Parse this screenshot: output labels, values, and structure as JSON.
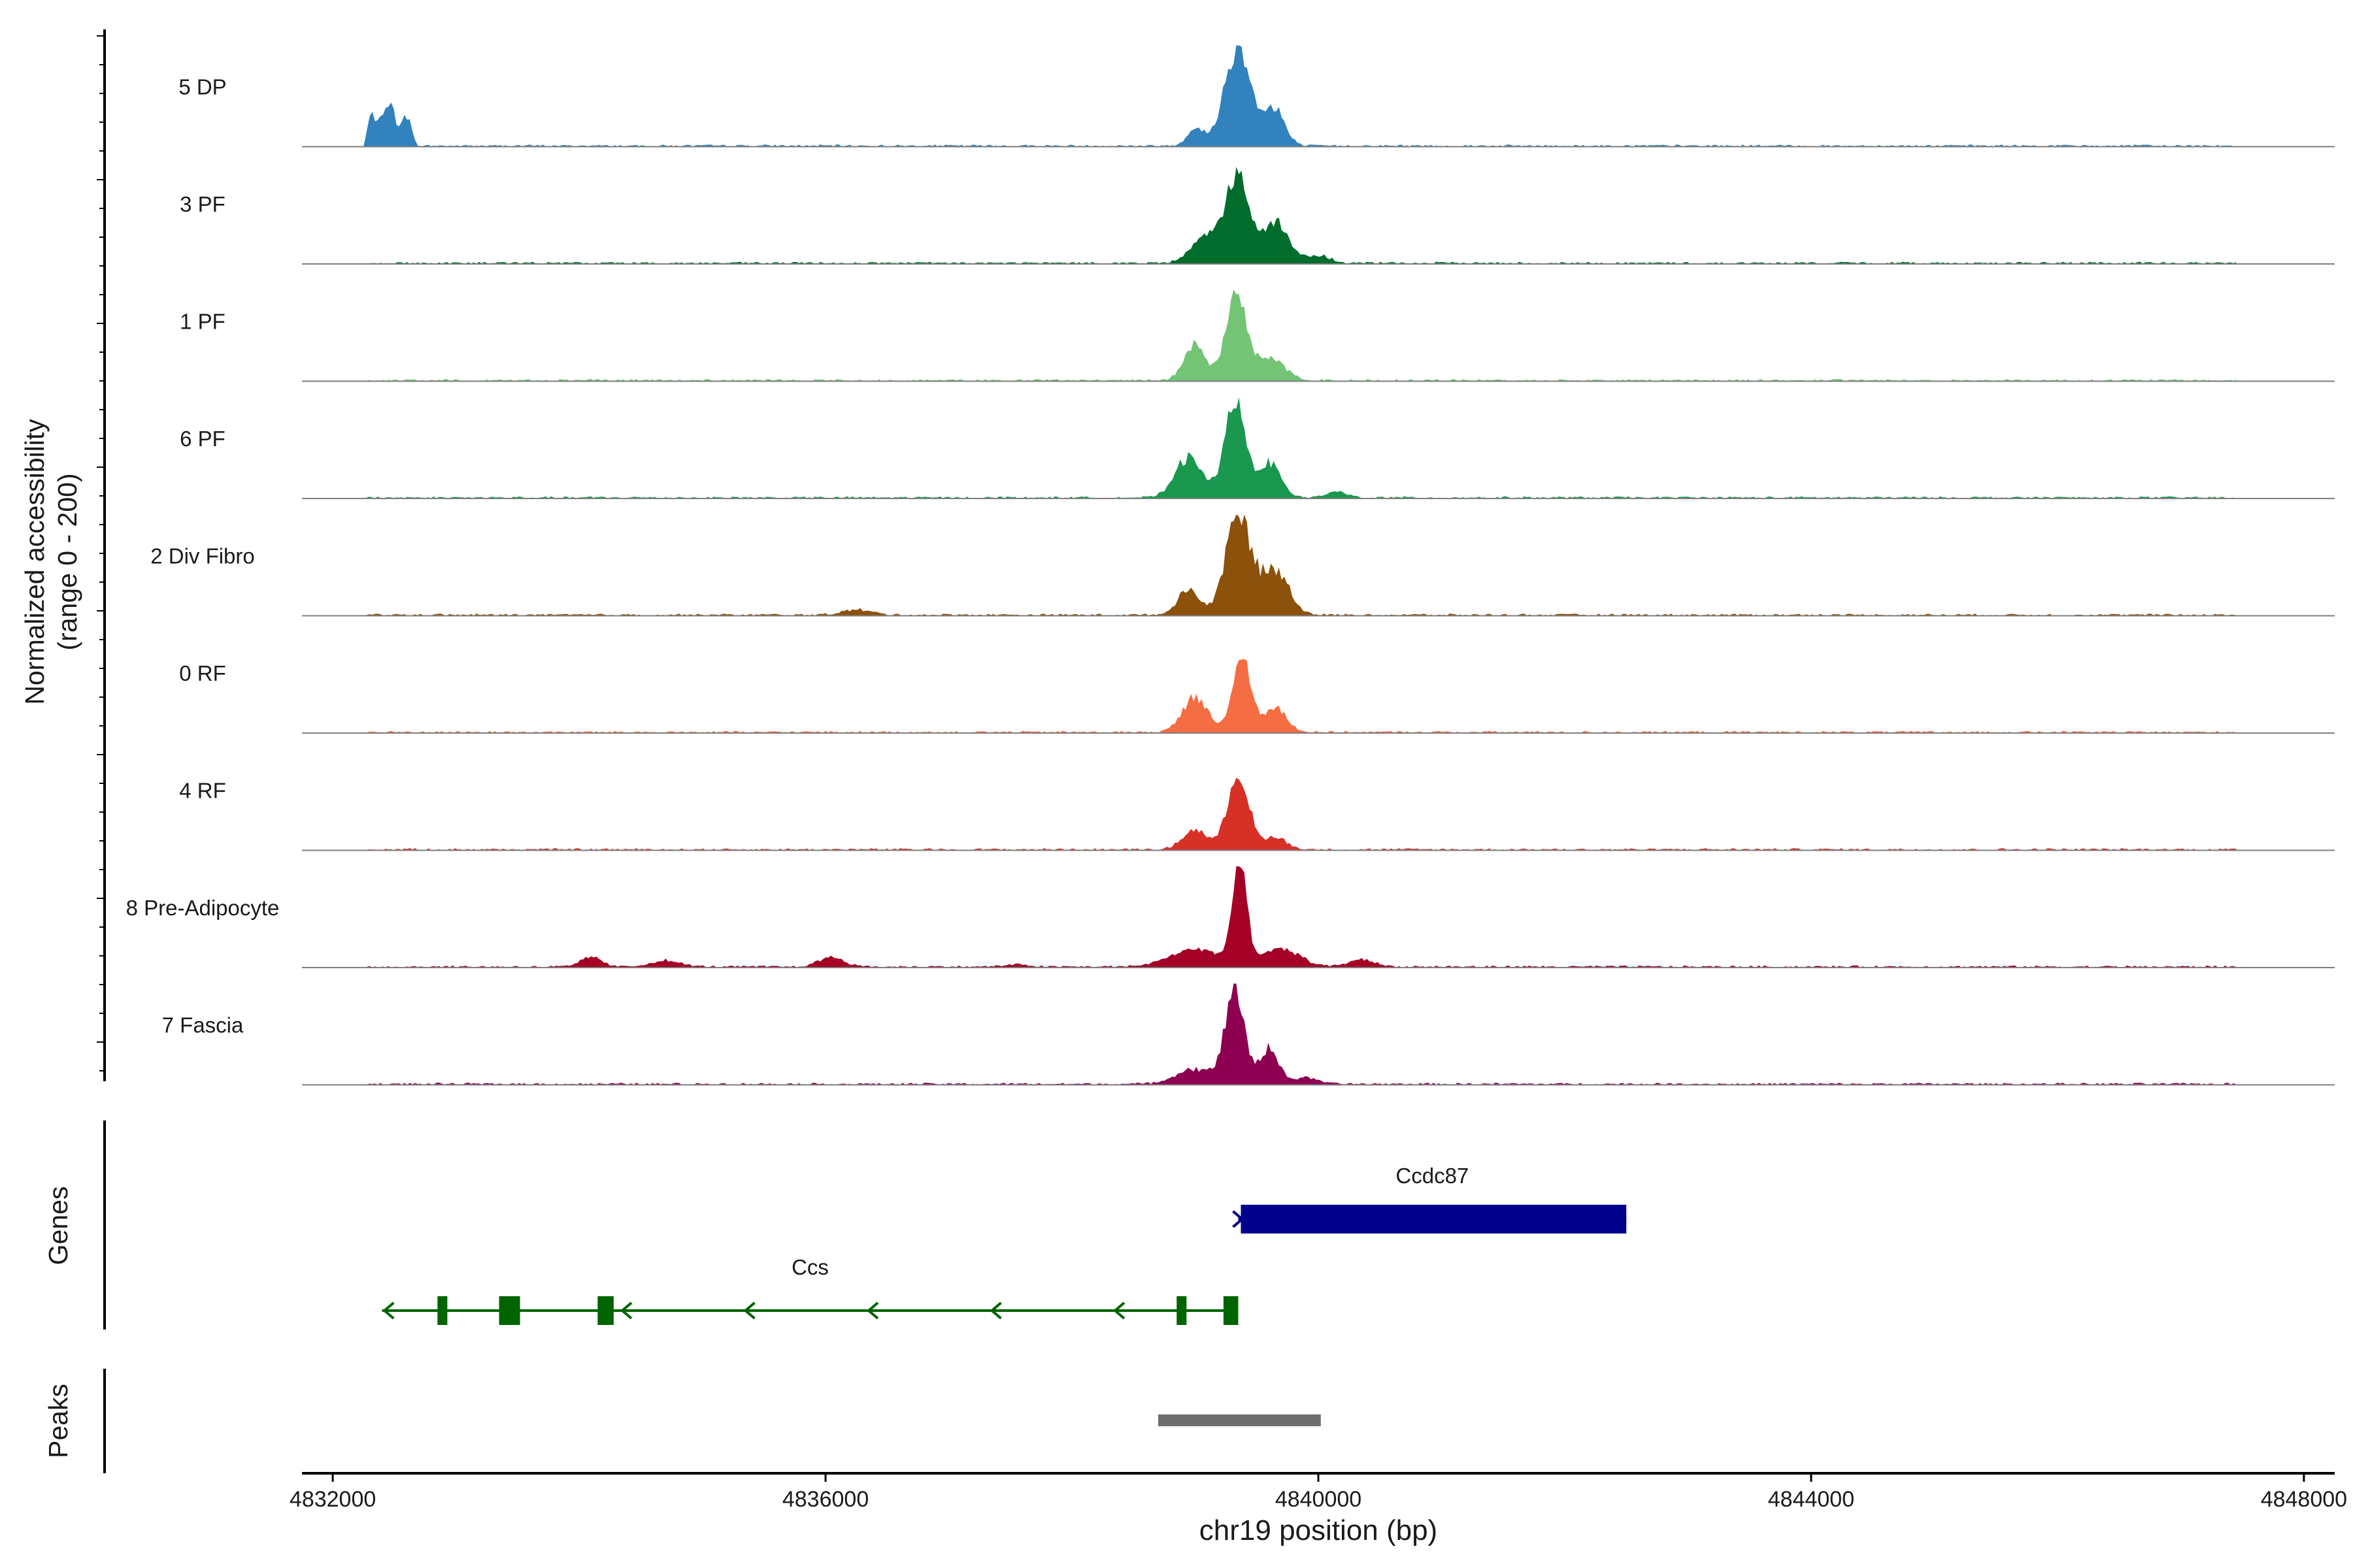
{
  "chart_data": {
    "type": "coverage",
    "ylabel_line1": "Normalized accessibility",
    "ylabel_line2": "(range 0 - 200)",
    "xlabel": "chr19 position (bp)",
    "xlim": [
      4831750,
      4848250
    ],
    "xticks": [
      4832000,
      4836000,
      4840000,
      4844000,
      4848000
    ],
    "xtick_labels": [
      "4832000",
      "4836000",
      "4840000",
      "4844000",
      "4848000"
    ],
    "y_range": [
      0,
      200
    ],
    "genes_label": "Genes",
    "peaks_label": "Peaks",
    "tracks": [
      {
        "name": "5 DP",
        "color": "#3182BD",
        "peaks": [
          [
            4832450,
            55,
            90
          ],
          [
            4832600,
            35,
            60
          ],
          [
            4839000,
            65,
            35
          ],
          [
            4839350,
            110,
            200
          ],
          [
            4839650,
            80,
            70
          ],
          [
            4832300,
            40,
            60
          ]
        ]
      },
      {
        "name": "3 PF",
        "color": "#006D2C",
        "peaks": [
          [
            4839350,
            90,
            170
          ],
          [
            4839100,
            120,
            60
          ],
          [
            4839650,
            110,
            80
          ],
          [
            4840000,
            90,
            15
          ]
        ]
      },
      {
        "name": "1 PF",
        "color": "#74C476",
        "peaks": [
          [
            4839000,
            90,
            70
          ],
          [
            4839330,
            80,
            180
          ],
          [
            4839600,
            120,
            45
          ]
        ]
      },
      {
        "name": "6 PF",
        "color": "#1A9850",
        "peaks": [
          [
            4838950,
            110,
            80
          ],
          [
            4839320,
            80,
            200
          ],
          [
            4839600,
            90,
            70
          ],
          [
            4840150,
            80,
            12
          ]
        ]
      },
      {
        "name": "2 Div Fibro",
        "color": "#8C510A",
        "peaks": [
          [
            4838950,
            90,
            50
          ],
          [
            4839350,
            100,
            200
          ],
          [
            4839650,
            110,
            90
          ],
          [
            4836250,
            120,
            10
          ]
        ]
      },
      {
        "name": "0 RF",
        "color": "#F46D43",
        "peaks": [
          [
            4839000,
            100,
            70
          ],
          [
            4839380,
            75,
            150
          ],
          [
            4839650,
            90,
            50
          ]
        ]
      },
      {
        "name": "4 RF",
        "color": "#D73027",
        "peaks": [
          [
            4839000,
            100,
            40
          ],
          [
            4839350,
            85,
            150
          ],
          [
            4839650,
            90,
            25
          ]
        ]
      },
      {
        "name": "8 Pre-Adipocyte",
        "color": "#A50026",
        "peaks": [
          [
            4839360,
            60,
            190
          ],
          [
            4839000,
            200,
            35
          ],
          [
            4839700,
            150,
            35
          ],
          [
            4834100,
            80,
            20
          ],
          [
            4836050,
            100,
            20
          ],
          [
            4834700,
            120,
            12
          ],
          [
            4840350,
            100,
            15
          ],
          [
            4837550,
            100,
            4
          ]
        ]
      },
      {
        "name": "7 Fascia",
        "color": "#8E0152",
        "peaks": [
          [
            4839320,
            75,
            190
          ],
          [
            4839600,
            80,
            70
          ],
          [
            4839000,
            150,
            30
          ],
          [
            4839900,
            100,
            12
          ]
        ]
      }
    ],
    "genes": [
      {
        "name": "Ccdc87",
        "start": 4839350,
        "end": 4842500,
        "strand": "+",
        "color": "#00008B"
      },
      {
        "name": "Ccs",
        "start": 4832400,
        "end": 4839350,
        "strand": "-",
        "color": "#006400",
        "exons": [
          [
            4832850,
            4832930
          ],
          [
            4833350,
            4833520
          ],
          [
            4834150,
            4834280
          ],
          [
            4838850,
            4838930
          ],
          [
            4839230,
            4839350
          ]
        ]
      }
    ],
    "peak_regions": [
      [
        4838700,
        4840020
      ]
    ],
    "peak_color": "#6E6E6E"
  }
}
